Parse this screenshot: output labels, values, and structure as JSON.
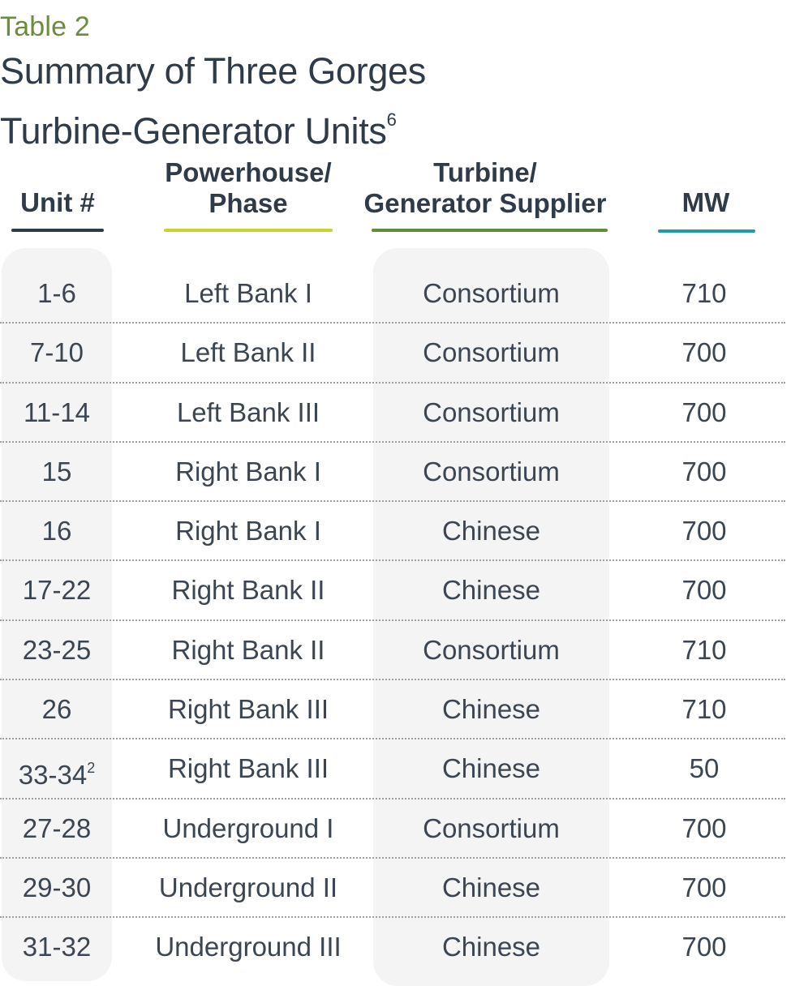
{
  "table_label": "Table 2",
  "title": {
    "line1": "Summary of Three Gorges",
    "line2": "Turbine-Generator Units",
    "footnote": "6"
  },
  "columns": {
    "unit": "Unit #",
    "phase_line1": "Powerhouse/",
    "phase_line2": "Phase",
    "supplier_line1": "Turbine/",
    "supplier_line2": "Generator Supplier",
    "mw": "MW"
  },
  "colors": {
    "unit_underline": "#2f3b48",
    "phase_underline": "#c6d431",
    "supplier_underline": "#5e8c3a",
    "mw_underline": "#1f9bab"
  },
  "rows": [
    {
      "unit": "1-6",
      "unit_note": "",
      "phase": "Left Bank I",
      "supplier": "Consortium",
      "mw": "710"
    },
    {
      "unit": "7-10",
      "unit_note": "",
      "phase": "Left Bank II",
      "supplier": "Consortium",
      "mw": "700"
    },
    {
      "unit": "11-14",
      "unit_note": "",
      "phase": "Left Bank III",
      "supplier": "Consortium",
      "mw": "700"
    },
    {
      "unit": "15",
      "unit_note": "",
      "phase": "Right Bank I",
      "supplier": "Consortium",
      "mw": "700"
    },
    {
      "unit": "16",
      "unit_note": "",
      "phase": "Right Bank I",
      "supplier": "Chinese",
      "mw": "700"
    },
    {
      "unit": "17-22",
      "unit_note": "",
      "phase": "Right Bank II",
      "supplier": "Chinese",
      "mw": "700"
    },
    {
      "unit": "23-25",
      "unit_note": "",
      "phase": "Right Bank II",
      "supplier": "Consortium",
      "mw": "710"
    },
    {
      "unit": "26",
      "unit_note": "",
      "phase": "Right Bank III",
      "supplier": "Chinese",
      "mw": "710"
    },
    {
      "unit": "33-34",
      "unit_note": "2",
      "phase": "Right Bank III",
      "supplier": "Chinese",
      "mw": "50"
    },
    {
      "unit": "27-28",
      "unit_note": "",
      "phase": "Underground I",
      "supplier": "Consortium",
      "mw": "700"
    },
    {
      "unit": "29-30",
      "unit_note": "",
      "phase": "Underground II",
      "supplier": "Chinese",
      "mw": "700"
    },
    {
      "unit": "31-32",
      "unit_note": "",
      "phase": "Underground III",
      "supplier": "Chinese",
      "mw": "700"
    }
  ]
}
